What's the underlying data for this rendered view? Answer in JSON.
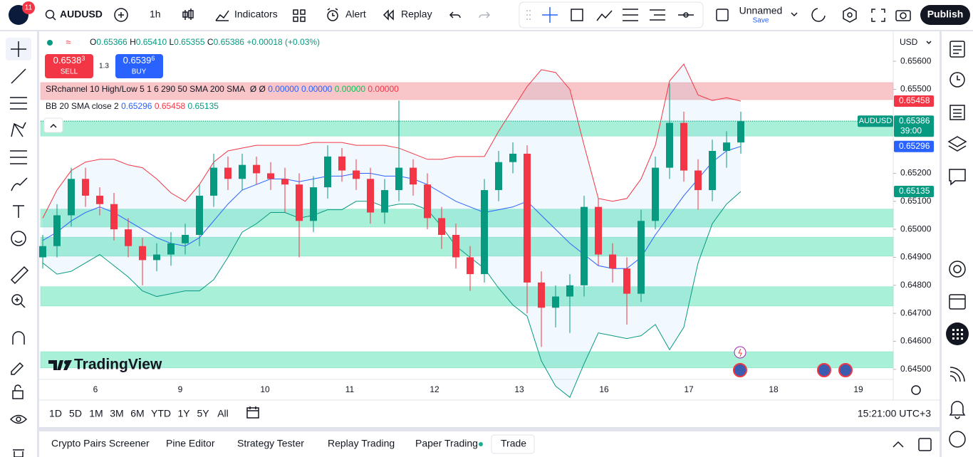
{
  "top_bar": {
    "badge": "11",
    "symbol": "AUDUSD",
    "interval": "1h",
    "indicators": "Indicators",
    "alert": "Alert",
    "replay": "Replay",
    "layout_name": "Unnamed",
    "save": "Save",
    "publish": "Publish"
  },
  "legend": {
    "ohlc": [
      {
        "label": "O",
        "value": "0.65366"
      },
      {
        "label": "H",
        "value": "0.65410"
      },
      {
        "label": "L",
        "value": "0.65355"
      },
      {
        "label": "C"
      }
    ],
    "change": "+0.00018 (+0.03%)",
    "sell": {
      "price": "0.6538",
      "sup": "3",
      "label": "SELL"
    },
    "spread": "1.3",
    "buy": {
      "price": "0.6539",
      "sup": "6",
      "label": "BUY"
    },
    "sr": {
      "name": "SRchannel 10 High/Low 5 1 6 290 50 SMA 200 SMA",
      "flags": "Ø Ø",
      "values": [
        {
          "text": "0.00000",
          "color": "#2962ff"
        },
        {
          "text": "0.00000",
          "color": "#2962ff"
        },
        {
          "text": "0.00000",
          "color": "#00c853"
        },
        {
          "text": "0.00000",
          "color": "#f23645"
        }
      ]
    },
    "bb": {
      "name": "BB 20 SMA close 2"
    }
  },
  "currency": "USD",
  "watermark": "TradingView",
  "chart_data": {
    "type": "candlestick",
    "symbol_label": "AUDUSD",
    "countdown": "39:00",
    "ylim": [
      0.64464,
      0.65707
    ],
    "yticks": [
      {
        "value": 0.656,
        "label": "0.65600"
      },
      {
        "value": 0.655,
        "label": "0.65500"
      },
      {
        "value": 0.652,
        "label": "0.65200"
      },
      {
        "value": 0.651,
        "label": "0.65100"
      },
      {
        "value": 0.65,
        "label": "0.65000"
      },
      {
        "value": 0.649,
        "label": "0.64900"
      },
      {
        "value": 0.648,
        "label": "0.64800"
      },
      {
        "value": 0.647,
        "label": "0.64700"
      },
      {
        "value": 0.646,
        "label": "0.64600"
      },
      {
        "value": 0.645,
        "label": "0.64500"
      }
    ],
    "xticks": [
      "6",
      "9",
      "10",
      "11",
      "12",
      "13",
      "16",
      "17",
      "18",
      "19"
    ],
    "up_color": "#089981",
    "down_color": "#f23645",
    "open": [
      0.649,
      0.6494,
      0.6505,
      0.6518,
      0.6512,
      0.6509,
      0.65,
      0.6494,
      0.6489,
      0.6491,
      0.6495,
      0.6498,
      0.6512,
      0.6522,
      0.6518,
      0.6523,
      0.652,
      0.6518,
      0.6516,
      0.6503,
      0.6515,
      0.6526,
      0.6521,
      0.6518,
      0.6506,
      0.6514,
      0.6522,
      0.6516,
      0.6504,
      0.6498,
      0.649,
      0.6484,
      0.6514,
      0.6524,
      0.6527,
      0.6481,
      0.6472,
      0.6476,
      0.648,
      0.6508,
      0.6491,
      0.6486,
      0.6477,
      0.6503,
      0.6522,
      0.6538,
      0.6521,
      0.6514,
      0.6528,
      0.6531
    ],
    "high": [
      0.6498,
      0.6509,
      0.6522,
      0.6522,
      0.6515,
      0.6513,
      0.6504,
      0.6497,
      0.6495,
      0.6499,
      0.6502,
      0.6516,
      0.6527,
      0.6526,
      0.6527,
      0.6526,
      0.6524,
      0.6522,
      0.652,
      0.6519,
      0.653,
      0.6529,
      0.6525,
      0.6522,
      0.6518,
      0.6546,
      0.6525,
      0.652,
      0.6508,
      0.6502,
      0.6494,
      0.6518,
      0.6528,
      0.6531,
      0.653,
      0.6485,
      0.648,
      0.6484,
      0.6512,
      0.6511,
      0.6495,
      0.649,
      0.6507,
      0.6526,
      0.6552,
      0.6542,
      0.6525,
      0.6532,
      0.6535,
      0.6542
    ],
    "low": [
      0.6486,
      0.649,
      0.6501,
      0.6508,
      0.6505,
      0.6496,
      0.649,
      0.648,
      0.6485,
      0.6487,
      0.6491,
      0.6494,
      0.6508,
      0.6514,
      0.6514,
      0.6516,
      0.6514,
      0.6506,
      0.649,
      0.6499,
      0.6511,
      0.6517,
      0.6514,
      0.6502,
      0.6502,
      0.651,
      0.6512,
      0.65,
      0.6493,
      0.6486,
      0.6478,
      0.6481,
      0.651,
      0.652,
      0.647,
      0.6458,
      0.6465,
      0.6463,
      0.6476,
      0.6487,
      0.6481,
      0.6466,
      0.6474,
      0.65,
      0.6518,
      0.6517,
      0.6507,
      0.651,
      0.6522,
      0.6527
    ],
    "close": [
      0.6494,
      0.6505,
      0.6518,
      0.6512,
      0.6509,
      0.65,
      0.6494,
      0.6489,
      0.6491,
      0.6495,
      0.6498,
      0.6512,
      0.6522,
      0.6518,
      0.6523,
      0.652,
      0.6518,
      0.6516,
      0.6503,
      0.6515,
      0.6526,
      0.6521,
      0.6518,
      0.6506,
      0.6514,
      0.6522,
      0.6516,
      0.6504,
      0.6498,
      0.649,
      0.6484,
      0.6514,
      0.6524,
      0.6527,
      0.6481,
      0.6472,
      0.6476,
      0.648,
      0.6508,
      0.6491,
      0.6486,
      0.6477,
      0.6503,
      0.6522,
      0.6538,
      0.6521,
      0.6514,
      0.6528,
      0.6531,
      0.65386
    ],
    "bb": {
      "upper_color": "#f23645",
      "middle_color": "#2962ff",
      "lower_color": "#089981",
      "upper": [
        0.6504,
        0.6514,
        0.6521,
        0.6524,
        0.6525,
        0.6525,
        0.6523,
        0.6522,
        0.6518,
        0.6513,
        0.651,
        0.6516,
        0.6524,
        0.6528,
        0.6529,
        0.653,
        0.653,
        0.653,
        0.653,
        0.6531,
        0.6531,
        0.6531,
        0.653,
        0.653,
        0.653,
        0.6529,
        0.6527,
        0.6525,
        0.6525,
        0.6526,
        0.6526,
        0.6526,
        0.6535,
        0.6543,
        0.6551,
        0.6557,
        0.6556,
        0.655,
        0.653,
        0.6511,
        0.651,
        0.6511,
        0.6518,
        0.653,
        0.6553,
        0.6559,
        0.6548,
        0.6546,
        0.6547,
        0.65458
      ],
      "middle": [
        0.6496,
        0.6499,
        0.6503,
        0.6506,
        0.6508,
        0.6506,
        0.6503,
        0.65,
        0.6497,
        0.6495,
        0.6494,
        0.6497,
        0.6503,
        0.6509,
        0.6514,
        0.6516,
        0.6518,
        0.6518,
        0.6517,
        0.6518,
        0.6519,
        0.6519,
        0.652,
        0.652,
        0.6519,
        0.6519,
        0.6518,
        0.6516,
        0.6513,
        0.651,
        0.6508,
        0.6506,
        0.6507,
        0.6508,
        0.651,
        0.6505,
        0.65,
        0.6495,
        0.6491,
        0.6487,
        0.6486,
        0.6486,
        0.649,
        0.6498,
        0.6505,
        0.6512,
        0.6518,
        0.6524,
        0.6528,
        0.65296
      ],
      "lower": [
        0.6488,
        0.6484,
        0.6485,
        0.6488,
        0.6491,
        0.6487,
        0.6483,
        0.6478,
        0.6476,
        0.6477,
        0.6478,
        0.6478,
        0.6482,
        0.649,
        0.6499,
        0.6502,
        0.6506,
        0.6506,
        0.6504,
        0.6505,
        0.6507,
        0.6507,
        0.651,
        0.651,
        0.6508,
        0.6509,
        0.6509,
        0.6507,
        0.6501,
        0.6494,
        0.649,
        0.6486,
        0.6479,
        0.6473,
        0.6469,
        0.6453,
        0.6444,
        0.644,
        0.6452,
        0.6463,
        0.6462,
        0.6461,
        0.6462,
        0.6466,
        0.6457,
        0.6465,
        0.6488,
        0.6502,
        0.6509,
        0.65135
      ]
    },
    "zones": [
      {
        "from": 0.65463,
        "to": 0.65524,
        "color": "#f8c5c8"
      },
      {
        "from": 0.65333,
        "to": 0.65387,
        "color": "#a8f0d8"
      },
      {
        "from": 0.65008,
        "to": 0.65072,
        "color": "#a8f0d8"
      },
      {
        "from": 0.64904,
        "to": 0.64972,
        "color": "#a8f0d8"
      },
      {
        "from": 0.64726,
        "to": 0.64795,
        "color": "#a8f0d8"
      },
      {
        "from": 0.64505,
        "to": 0.64563,
        "color": "#a8f0d8"
      }
    ]
  },
  "bottom_bar": {
    "periods": [
      "1D",
      "5D",
      "1M",
      "3M",
      "6M",
      "YTD",
      "1Y",
      "5Y",
      "All"
    ],
    "time": "15:21:00 UTC+3"
  },
  "tabs": [
    "Crypto Pairs Screener",
    "Pine Editor",
    "Strategy Tester",
    "Replay Trading",
    "Paper Trading",
    "Trade"
  ]
}
